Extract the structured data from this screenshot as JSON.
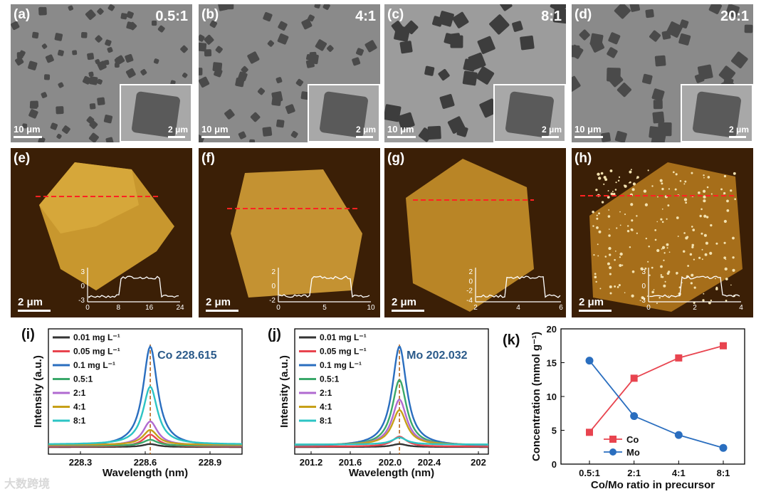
{
  "sem_panels": [
    {
      "label": "(a)",
      "ratio": "0.5:1",
      "scale_main": "10 μm",
      "scale_inset": "2 μm"
    },
    {
      "label": "(b)",
      "ratio": "4:1",
      "scale_main": "10 μm",
      "scale_inset": "2 μm"
    },
    {
      "label": "(c)",
      "ratio": "8:1",
      "scale_main": "10 μm",
      "scale_inset": "2 μm"
    },
    {
      "label": "(d)",
      "ratio": "20:1",
      "scale_main": "10 μm",
      "scale_inset": "2 μm"
    }
  ],
  "afm_panels": [
    {
      "label": "(e)",
      "scale": "2 μm",
      "y_ticks": [
        "3",
        "0",
        "-3"
      ],
      "x_ticks": [
        "0",
        "8",
        "16",
        "24"
      ]
    },
    {
      "label": "(f)",
      "scale": "2 μm",
      "y_ticks": [
        "2",
        "0",
        "-2"
      ],
      "x_ticks": [
        "0",
        "5",
        "10"
      ]
    },
    {
      "label": "(g)",
      "scale": "2 μm",
      "y_ticks": [
        "2",
        "0",
        "-2",
        "-4"
      ],
      "x_ticks": [
        "2",
        "4",
        "6"
      ]
    },
    {
      "label": "(h)",
      "scale": "2 μm",
      "y_ticks": [
        "3",
        "0",
        "-3"
      ],
      "x_ticks": [
        "0",
        "2",
        "4"
      ]
    }
  ],
  "colors": {
    "black": "#333333",
    "red": "#e8444f",
    "blue": "#2a6ebf",
    "green": "#3aa86a",
    "purple": "#b06ad0",
    "gold": "#c6a018",
    "cyan": "#2cc4c4",
    "ref_line": "#b5651d",
    "text_blue": "#2a5a8a"
  },
  "chart_data": [
    {
      "type": "line",
      "panel": "(i)",
      "title": "Co 228.615",
      "xlabel": "Wavelength (nm)",
      "ylabel": "Intensity (a.u.)",
      "x_ticks": [
        "228.3",
        "228.6",
        "228.9"
      ],
      "xlim": [
        228.11,
        229.07
      ],
      "peak_center": 228.615,
      "legend": [
        "0.01 mg L⁻¹",
        "0.05 mg L⁻¹",
        "0.1 mg L⁻¹",
        "0.5:1",
        "2:1",
        "4:1",
        "8:1"
      ],
      "series": [
        {
          "name": "0.01 mg L⁻¹",
          "peak": 0.03,
          "color": "#333333"
        },
        {
          "name": "0.05 mg L⁻¹",
          "peak": 0.12,
          "color": "#e8444f"
        },
        {
          "name": "0.1 mg L⁻¹",
          "peak": 1.0,
          "color": "#2a6ebf"
        },
        {
          "name": "0.5:1",
          "peak": 0.06,
          "color": "#3aa86a"
        },
        {
          "name": "2:1",
          "peak": 0.24,
          "color": "#b06ad0"
        },
        {
          "name": "4:1",
          "peak": 0.15,
          "color": "#c6a018"
        },
        {
          "name": "8:1",
          "peak": 0.58,
          "color": "#2cc4c4"
        }
      ]
    },
    {
      "type": "line",
      "panel": "(j)",
      "title": "Mo 202.032",
      "xlabel": "Wavelength (nm)",
      "ylabel": "Intensity (a.u.)",
      "x_ticks": [
        "201.2",
        "201.6",
        "202.0",
        "202.4",
        "202"
      ],
      "xlim": [
        201.08,
        202.84
      ],
      "peak_center": 202.032,
      "legend": [
        "0.01 mg L⁻¹",
        "0.05 mg L⁻¹",
        "0.1 mg L⁻¹",
        "0.5:1",
        "2:1",
        "4:1",
        "8:1"
      ],
      "series": [
        {
          "name": "0.01 mg L⁻¹",
          "peak": 0.03,
          "color": "#333333"
        },
        {
          "name": "0.05 mg L⁻¹",
          "peak": 0.1,
          "color": "#e8444f"
        },
        {
          "name": "0.1 mg L⁻¹",
          "peak": 1.0,
          "color": "#2a6ebf"
        },
        {
          "name": "0.5:1",
          "peak": 0.66,
          "color": "#3aa86a"
        },
        {
          "name": "2:1",
          "peak": 0.46,
          "color": "#b06ad0"
        },
        {
          "name": "4:1",
          "peak": 0.35,
          "color": "#c6a018"
        },
        {
          "name": "8:1",
          "peak": 0.07,
          "color": "#2cc4c4"
        }
      ]
    },
    {
      "type": "line",
      "panel": "(k)",
      "xlabel": "Co/Mo ratio in precursor",
      "ylabel": "Concentration (mmol g⁻¹)",
      "categories": [
        "0.5:1",
        "2:1",
        "4:1",
        "8:1"
      ],
      "ylim": [
        0,
        20
      ],
      "y_ticks": [
        "0",
        "5",
        "10",
        "15",
        "20"
      ],
      "series": [
        {
          "name": "Co",
          "values": [
            4.7,
            12.7,
            15.7,
            17.5
          ],
          "color": "#e8444f",
          "marker": "square"
        },
        {
          "name": "Mo",
          "values": [
            15.3,
            7.1,
            4.3,
            2.4
          ],
          "color": "#2a6ebf",
          "marker": "circle"
        }
      ]
    }
  ],
  "watermark": "大数跨境"
}
